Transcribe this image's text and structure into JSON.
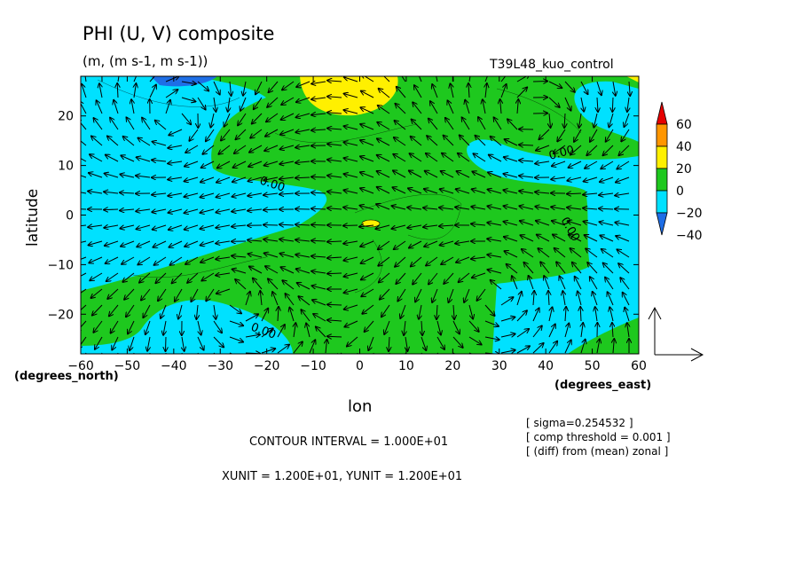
{
  "chart_data": {
    "type": "heatmap",
    "title": "PHI (U, V) composite",
    "subtitle": "(m, (m s-1, m s-1))",
    "run_label": "T39L48_kuo_control",
    "xlabel": "lon",
    "ylabel": "latitude",
    "x_unit_label": "(degrees_east)",
    "y_unit_label": "(degrees_north)",
    "xlim": [
      -60,
      60
    ],
    "ylim": [
      -28,
      28
    ],
    "x_ticks": [
      "-60",
      "-50",
      "-40",
      "-30",
      "-20",
      "-10",
      "0",
      "10",
      "20",
      "30",
      "40",
      "50",
      "60"
    ],
    "y_ticks": [
      "20",
      "10",
      "0",
      "-10",
      "-20"
    ],
    "contour_labels": [
      "0.00",
      "0.00",
      "0.00",
      "0.00"
    ],
    "colorbar": {
      "ticks": [
        "60",
        "40",
        "20",
        "0",
        "-20",
        "-40"
      ],
      "levels": [
        -60,
        -40,
        -20,
        0,
        20,
        40,
        60
      ],
      "colors": [
        "#1e6ee6",
        "#00e1ff",
        "#1ec81e",
        "#fff000",
        "#ff9600",
        "#e60000"
      ]
    },
    "contour_interval": "CONTOUR INTERVAL = 1.000E+01",
    "vector_units": "XUNIT = 1.200E+01, YUNIT = 1.200E+01",
    "notes": [
      "[ sigma=0.254532 ]",
      "[ comp threshold = 0.001 ]",
      "[ (diff) from (mean) zonal ]"
    ]
  }
}
